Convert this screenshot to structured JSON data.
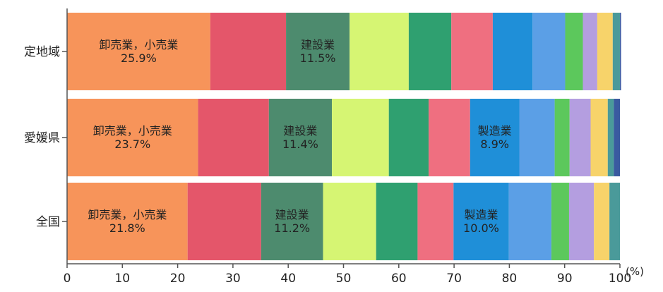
{
  "chart_data": {
    "type": "bar",
    "orientation": "horizontal",
    "stacked": true,
    "categories": [
      "定地域",
      "愛媛県",
      "全国"
    ],
    "x_unit": "(%)",
    "xlim": [
      0,
      100
    ],
    "x_ticks": [
      0,
      10,
      20,
      30,
      40,
      50,
      60,
      70,
      80,
      90,
      100
    ],
    "grid": false,
    "segment_colors": [
      "#f7945a",
      "#e4566a",
      "#4d8b6e",
      "#d6f573",
      "#2fa070",
      "#ef6f80",
      "#1f8fd8",
      "#5b9fe6",
      "#5cc85c",
      "#b49ee0",
      "#f7d36a",
      "#4a9a9a",
      "#3a5aa0"
    ],
    "series": [
      {
        "values": [
          25.9,
          23.7,
          21.8
        ],
        "labels": [
          "卸売業，小売業\n25.9%",
          "卸売業，小売業\n23.7%",
          "卸売業，小売業\n21.8%"
        ]
      },
      {
        "values": [
          13.7,
          12.8,
          13.3
        ]
      },
      {
        "values": [
          11.5,
          11.4,
          11.2
        ],
        "labels": [
          "建設業\n11.5%",
          "建設業\n11.4%",
          "建設業\n11.2%"
        ]
      },
      {
        "values": [
          10.7,
          10.3,
          9.6
        ]
      },
      {
        "values": [
          7.7,
          7.2,
          7.5
        ]
      },
      {
        "values": [
          7.5,
          7.5,
          6.5
        ]
      },
      {
        "values": [
          7.2,
          8.9,
          10.0
        ],
        "labels": [
          "",
          "製造業\n8.9%",
          "製造業\n10.0%"
        ]
      },
      {
        "values": [
          5.9,
          6.4,
          7.7
        ]
      },
      {
        "values": [
          3.2,
          2.7,
          3.2
        ]
      },
      {
        "values": [
          2.6,
          3.8,
          4.5
        ]
      },
      {
        "values": [
          2.8,
          3.1,
          2.8
        ]
      },
      {
        "values": [
          1.3,
          1.1,
          1.9
        ]
      },
      {
        "values": [
          0.2,
          1.1,
          0.0
        ]
      }
    ]
  }
}
